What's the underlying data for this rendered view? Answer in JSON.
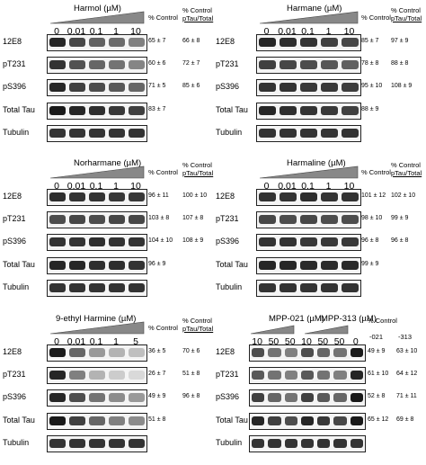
{
  "col_headers": {
    "control": "% Control",
    "control_ptau_line1": "% Control",
    "control_ptau_line2": "pTau/Total"
  },
  "panels": [
    {
      "title": "Harmol (µM)",
      "lanes": [
        "0",
        "0.01",
        "0.1",
        "1",
        "10"
      ],
      "rows": [
        {
          "label": "12E8",
          "control": "65 ± 7",
          "ptau": "66 ± 8",
          "intensity": [
            0.85,
            0.72,
            0.62,
            0.58,
            0.5
          ]
        },
        {
          "label": "pT231",
          "control": "60 ± 6",
          "ptau": "72 ± 7",
          "intensity": [
            0.8,
            0.68,
            0.6,
            0.55,
            0.48
          ]
        },
        {
          "label": "pS396",
          "control": "71 ± 5",
          "ptau": "85 ± 6",
          "intensity": [
            0.85,
            0.75,
            0.7,
            0.65,
            0.6
          ]
        },
        {
          "label": "Total Tau",
          "control": "83 ± 7",
          "ptau": "",
          "intensity": [
            0.9,
            0.85,
            0.82,
            0.78,
            0.75
          ]
        },
        {
          "label": "Tubulin",
          "control": "",
          "ptau": "",
          "intensity": [
            0.8,
            0.8,
            0.8,
            0.8,
            0.8
          ]
        }
      ]
    },
    {
      "title": "Harmane (µM)",
      "lanes": [
        "0",
        "0.01",
        "0.1",
        "1",
        "10"
      ],
      "rows": [
        {
          "label": "12E8",
          "control": "85 ± 7",
          "ptau": "97 ± 9",
          "intensity": [
            0.85,
            0.82,
            0.8,
            0.75,
            0.72
          ]
        },
        {
          "label": "pT231",
          "control": "78 ± 8",
          "ptau": "88 ± 8",
          "intensity": [
            0.75,
            0.72,
            0.7,
            0.66,
            0.62
          ]
        },
        {
          "label": "pS396",
          "control": "95 ± 10",
          "ptau": "108 ± 9",
          "intensity": [
            0.8,
            0.8,
            0.78,
            0.78,
            0.76
          ]
        },
        {
          "label": "Total Tau",
          "control": "88 ± 9",
          "ptau": "",
          "intensity": [
            0.85,
            0.82,
            0.8,
            0.78,
            0.75
          ]
        },
        {
          "label": "Tubulin",
          "control": "",
          "ptau": "",
          "intensity": [
            0.8,
            0.8,
            0.8,
            0.8,
            0.8
          ]
        }
      ]
    },
    {
      "title": "Norharmane (µM)",
      "lanes": [
        "0",
        "0.01",
        "0.1",
        "1",
        "10"
      ],
      "rows": [
        {
          "label": "12E8",
          "control": "96 ± 11",
          "ptau": "100 ± 10",
          "intensity": [
            0.82,
            0.8,
            0.8,
            0.78,
            0.78
          ]
        },
        {
          "label": "pT231",
          "control": "103 ± 8",
          "ptau": "107 ± 8",
          "intensity": [
            0.7,
            0.72,
            0.7,
            0.72,
            0.72
          ]
        },
        {
          "label": "pS396",
          "control": "104 ± 10",
          "ptau": "108 ± 9",
          "intensity": [
            0.8,
            0.8,
            0.82,
            0.8,
            0.8
          ]
        },
        {
          "label": "Total Tau",
          "control": "96 ± 9",
          "ptau": "",
          "intensity": [
            0.85,
            0.85,
            0.82,
            0.82,
            0.8
          ]
        },
        {
          "label": "Tubulin",
          "control": "",
          "ptau": "",
          "intensity": [
            0.8,
            0.8,
            0.8,
            0.8,
            0.8
          ]
        }
      ]
    },
    {
      "title": "Harmaline (µM)",
      "lanes": [
        "0",
        "0.01",
        "0.1",
        "1",
        "10"
      ],
      "rows": [
        {
          "label": "12E8",
          "control": "101 ± 12",
          "ptau": "102 ± 10",
          "intensity": [
            0.8,
            0.8,
            0.82,
            0.8,
            0.8
          ]
        },
        {
          "label": "pT231",
          "control": "98 ± 10",
          "ptau": "99 ± 9",
          "intensity": [
            0.72,
            0.7,
            0.72,
            0.7,
            0.7
          ]
        },
        {
          "label": "pS396",
          "control": "96 ± 8",
          "ptau": "96 ± 8",
          "intensity": [
            0.8,
            0.8,
            0.78,
            0.78,
            0.78
          ]
        },
        {
          "label": "Total Tau",
          "control": "99 ± 9",
          "ptau": "",
          "intensity": [
            0.85,
            0.85,
            0.84,
            0.84,
            0.84
          ]
        },
        {
          "label": "Tubulin",
          "control": "",
          "ptau": "",
          "intensity": [
            0.8,
            0.8,
            0.8,
            0.8,
            0.8
          ]
        }
      ]
    },
    {
      "title": "9-ethyl Harmine (µM)",
      "lanes": [
        "0",
        "0.01",
        "0.1",
        "1",
        "5"
      ],
      "rows": [
        {
          "label": "12E8",
          "control": "36 ± 5",
          "ptau": "70 ± 6",
          "intensity": [
            0.9,
            0.6,
            0.4,
            0.3,
            0.25
          ]
        },
        {
          "label": "pT231",
          "control": "26 ± 7",
          "ptau": "51 ± 8",
          "intensity": [
            0.85,
            0.5,
            0.3,
            0.2,
            0.15
          ]
        },
        {
          "label": "pS396",
          "control": "49 ± 9",
          "ptau": "96 ± 8",
          "intensity": [
            0.85,
            0.7,
            0.55,
            0.45,
            0.4
          ]
        },
        {
          "label": "Total Tau",
          "control": "51 ± 8",
          "ptau": "",
          "intensity": [
            0.9,
            0.75,
            0.6,
            0.5,
            0.45
          ]
        },
        {
          "label": "Tubulin",
          "control": "",
          "ptau": "",
          "intensity": [
            0.8,
            0.8,
            0.8,
            0.8,
            0.8
          ]
        }
      ]
    },
    {
      "title": "MPP-021 (µM)",
      "title2": "MPP-313 (µM)",
      "lanes": [
        "10",
        "50",
        "50",
        "10",
        "50",
        "50",
        "0"
      ],
      "sub_headers": {
        "control": "% Control",
        "a": "-021",
        "b": "-313"
      },
      "rows": [
        {
          "label": "12E8",
          "control": "49 ± 9",
          "ptau": "63 ± 10",
          "intensity": [
            0.7,
            0.55,
            0.5,
            0.7,
            0.6,
            0.55,
            0.9
          ]
        },
        {
          "label": "pT231",
          "control": "61 ± 10",
          "ptau": "64 ± 12",
          "intensity": [
            0.65,
            0.55,
            0.5,
            0.65,
            0.55,
            0.5,
            0.85
          ]
        },
        {
          "label": "pS396",
          "control": "52 ± 8",
          "ptau": "71 ± 11",
          "intensity": [
            0.75,
            0.6,
            0.55,
            0.75,
            0.65,
            0.6,
            0.9
          ]
        },
        {
          "label": "Total Tau",
          "control": "65 ± 12",
          "ptau": "69 ± 8",
          "intensity": [
            0.85,
            0.75,
            0.7,
            0.85,
            0.78,
            0.72,
            0.9
          ]
        },
        {
          "label": "Tubulin",
          "control": "",
          "ptau": "",
          "intensity": [
            0.8,
            0.8,
            0.8,
            0.8,
            0.8,
            0.8,
            0.8
          ]
        }
      ]
    }
  ]
}
